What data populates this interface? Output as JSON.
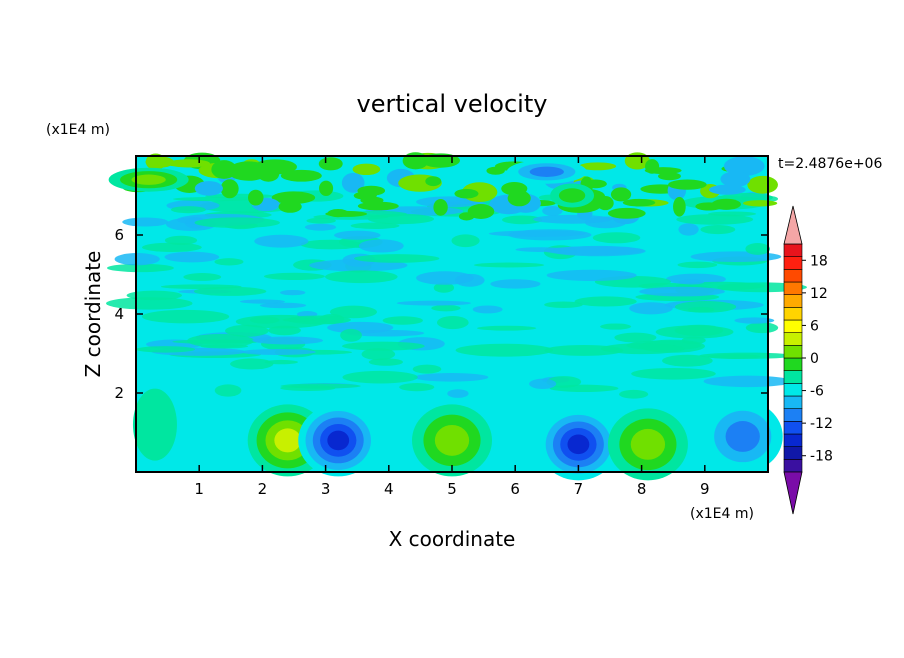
{
  "chart_data": {
    "type": "heatmap",
    "title": "vertical velocity",
    "xlabel": "X coordinate",
    "ylabel": "Z coordinate",
    "x_unit": "(x1E4 m)",
    "y_unit": "(x1E4 m)",
    "time_label": "t=2.4876e+06",
    "xlim": [
      0,
      10
    ],
    "ylim": [
      0,
      8
    ],
    "x_ticks": [
      "1",
      "2",
      "3",
      "4",
      "5",
      "6",
      "7",
      "8",
      "9"
    ],
    "y_ticks": [
      "2",
      "4",
      "6"
    ],
    "grid": false,
    "colorbar": {
      "ticks": [
        "18",
        "12",
        "6",
        "0",
        "-6",
        "-12",
        "-18"
      ],
      "range": [
        -21,
        21
      ],
      "step": 3,
      "extend": "both",
      "colors": [
        "#7a0ca8",
        "#3a10a0",
        "#1018a8",
        "#0828d0",
        "#1050f0",
        "#1c80f4",
        "#18b8f4",
        "#00e8e8",
        "#00e6a0",
        "#20d820",
        "#70e000",
        "#c8f000",
        "#ffff00",
        "#ffd400",
        "#ffaa00",
        "#ff7800",
        "#ff4a00",
        "#ff2010",
        "#e8141c",
        "#f4a6a6"
      ]
    },
    "features": [
      {
        "x": 0.3,
        "z": 1.2,
        "w": 3
      },
      {
        "x": 2.4,
        "z": 0.8,
        "w": 12
      },
      {
        "x": 3.2,
        "z": 0.8,
        "w": -16
      },
      {
        "x": 5.0,
        "z": 0.8,
        "w": 10
      },
      {
        "x": 7.0,
        "z": 0.7,
        "w": -15
      },
      {
        "x": 8.1,
        "z": 0.7,
        "w": 10
      },
      {
        "x": 9.6,
        "z": 0.9,
        "w": -10
      },
      {
        "x": 0.2,
        "z": 7.4,
        "w": 10
      },
      {
        "x": 6.9,
        "z": 7.0,
        "w": 6
      },
      {
        "x": 6.5,
        "z": 7.6,
        "w": -9
      }
    ]
  }
}
